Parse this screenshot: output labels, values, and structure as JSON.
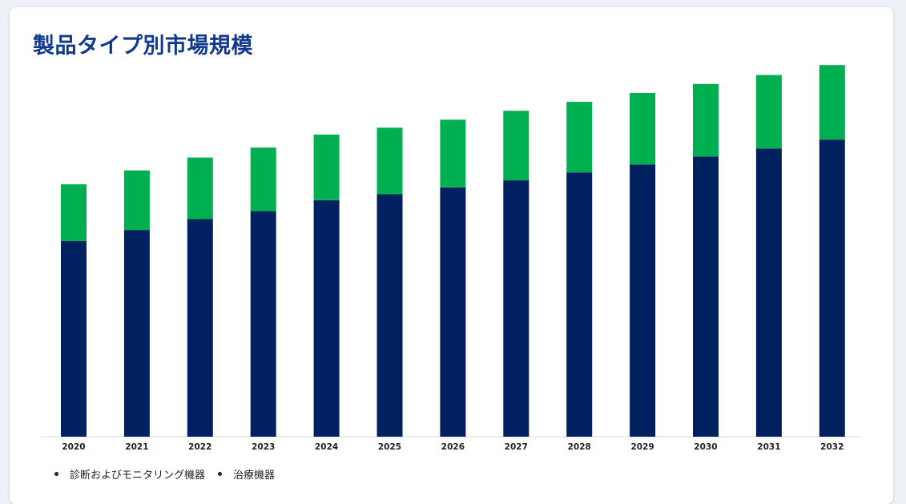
{
  "title": "製品タイプ別市場規模",
  "colors": {
    "series_0": "#00205f",
    "series_1": "#00b050",
    "title": "#123a8c"
  },
  "chart_data": {
    "type": "bar",
    "stacked": true,
    "categories": [
      "2020",
      "2021",
      "2022",
      "2023",
      "2024",
      "2025",
      "2026",
      "2027",
      "2028",
      "2029",
      "2030",
      "2031",
      "2032"
    ],
    "series": [
      {
        "name": "診断およびモニタリング機器",
        "values": [
          197,
          208,
          219,
          227,
          238,
          244,
          251,
          258,
          266,
          274,
          282,
          290,
          299
        ]
      },
      {
        "name": "治療機器",
        "values": [
          57,
          60,
          62,
          64,
          66,
          67,
          68,
          70,
          71,
          72,
          73,
          74,
          75
        ]
      }
    ],
    "ylim": [
      0,
      400
    ],
    "yaxis_visible": false,
    "grid": false,
    "legend_position": "bottom-left"
  }
}
